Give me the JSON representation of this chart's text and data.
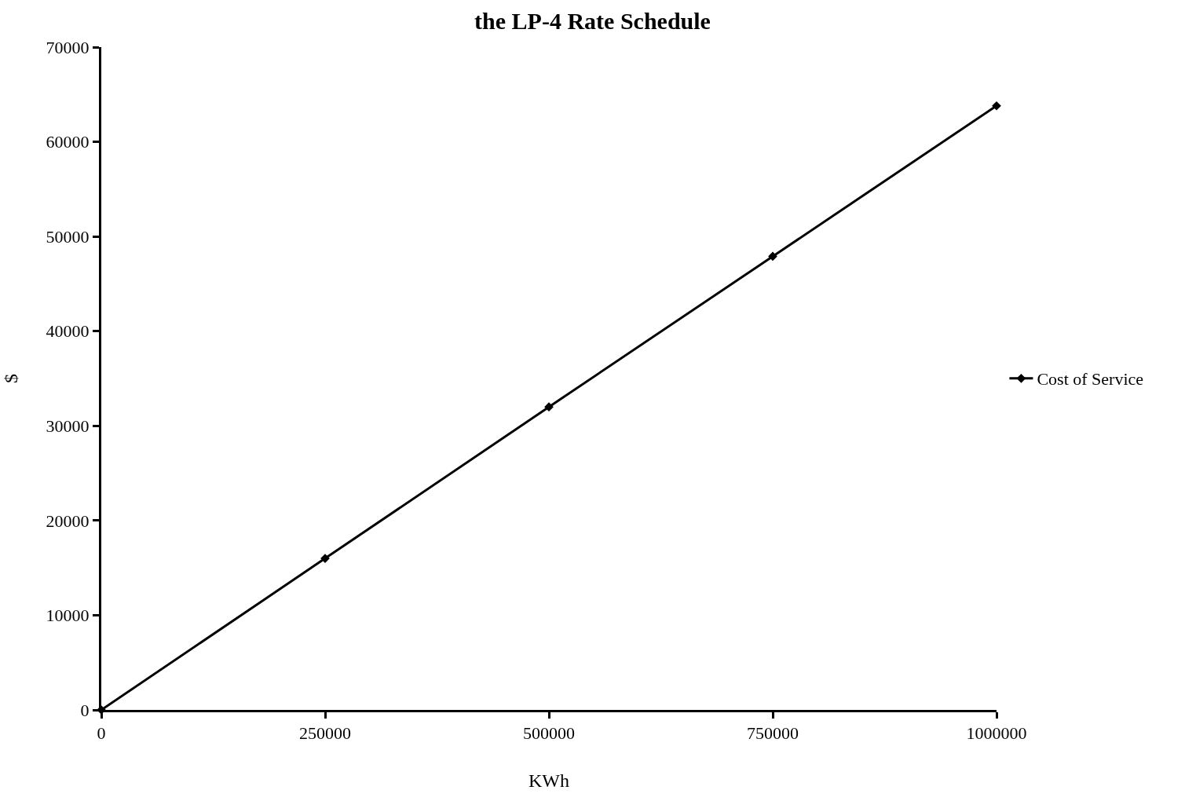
{
  "chart_data": {
    "type": "line",
    "title": "the LP-4 Rate Schedule",
    "xlabel": "KWh",
    "ylabel": "$",
    "x": [
      0,
      250000,
      500000,
      750000,
      1000000
    ],
    "series": [
      {
        "name": "Cost of Service",
        "color": "#000000",
        "values": [
          0,
          16000,
          32000,
          47900,
          63800
        ]
      }
    ],
    "xlim": [
      0,
      1000000
    ],
    "xticks": [
      0,
      250000,
      500000,
      750000,
      1000000
    ],
    "ylim": [
      0,
      70000
    ],
    "yticks": [
      0,
      10000,
      20000,
      30000,
      40000,
      50000,
      60000,
      70000
    ],
    "legend": "right",
    "marker": "diamond",
    "line_style": "solid"
  }
}
